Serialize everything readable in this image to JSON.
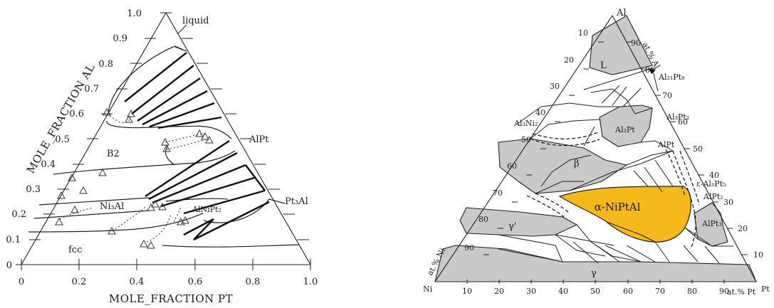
{
  "left_diagram": {
    "y_axis_label": "MOLE_FRACTION AL",
    "x_axis_label": "MOLE_FRACTION PT",
    "y_ticks": [
      "1.0",
      "0.9",
      "0.8",
      "0.7",
      "0.6",
      "0.5",
      "0.4",
      "0.3",
      "0.2",
      "0.1",
      "0"
    ],
    "x_ticks": [
      "0",
      "0.2",
      "0.4",
      "0.6",
      "0.8",
      "1.0"
    ],
    "phase_labels": {
      "liquid": "liquid",
      "b2": "B2",
      "ni3al": "Ni₃Al",
      "alnipt2": "AlNiPt₂",
      "fcc": "fcc",
      "alpt": "AlPt",
      "pt3al": "Pt₃Al"
    }
  },
  "right_diagram": {
    "corner_al": "Al",
    "corner_ni": "Ni",
    "corner_pt": "Pt",
    "left_ticks": [
      "10",
      "20",
      "30",
      "40",
      "50",
      "60",
      "70",
      "80",
      "90"
    ],
    "right_ticks": [
      "90",
      "80",
      "70",
      "60",
      "50",
      "40",
      "30",
      "20",
      "10"
    ],
    "bottom_ticks": [
      "10",
      "20",
      "30",
      "40",
      "50",
      "60",
      "70",
      "80",
      "90"
    ],
    "axis_al": "at.% Al",
    "axis_ni": "at.% Ni",
    "axis_pt": "at.% Pt",
    "phase_labels": {
      "L": "L",
      "beta": "β",
      "gamma_prime": "γ'",
      "gamma": "γ",
      "alpha": "α-NiPtAl",
      "al2pt": "Al₂Pt",
      "alpt": "AlPt",
      "alpt3": "AlPt₃",
      "al21pt8": "Al₂₁Pt₈",
      "al3pt2": "Al₃Pt₂",
      "al3ni2": "Al₃Ni₂",
      "al3pt5": "ε-Al₃Pt₅",
      "alpt2": "AlPt₂"
    },
    "alpha_fill_color": "#f5b81d"
  }
}
